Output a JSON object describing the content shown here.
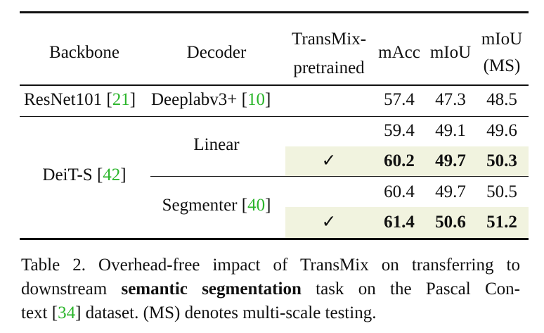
{
  "table": {
    "headers": {
      "backbone": "Backbone",
      "decoder": "Decoder",
      "pretrained_line1": "TransMix-",
      "pretrained_line2": "pretrained",
      "macc": "mAcc",
      "miou": "mIoU",
      "miou_ms_line1": "mIoU",
      "miou_ms_line2": "(MS)"
    },
    "rows": [
      {
        "backbone": "ResNet101",
        "backbone_cite": "21",
        "decoder": "Deeplabv3+",
        "decoder_cite": "10",
        "pretrained": "",
        "macc": "57.4",
        "miou": "47.3",
        "miou_ms": "48.5"
      },
      {
        "decoder": "Linear",
        "pretrained": "",
        "macc": "59.4",
        "miou": "49.1",
        "miou_ms": "49.6"
      },
      {
        "pretrained": "✓",
        "macc": "60.2",
        "miou": "49.7",
        "miou_ms": "50.3"
      },
      {
        "decoder": "Segmenter",
        "decoder_cite": "40",
        "pretrained": "",
        "macc": "60.4",
        "miou": "49.7",
        "miou_ms": "50.5"
      },
      {
        "pretrained": "✓",
        "macc": "61.4",
        "miou": "50.6",
        "miou_ms": "51.2"
      }
    ],
    "group_backbone": "DeiT-S",
    "group_backbone_cite": "42"
  },
  "caption": {
    "l1": "Table 2. Overhead-free impact of TransMix on transferring to",
    "l2_a": "downstream ",
    "l2_b": "semantic segmentation",
    "l2_c": " task on the Pascal Con-",
    "l3_a": "text [",
    "l3_cite": "34",
    "l3_b": "] dataset. (MS) denotes multi-scale testing."
  },
  "colors": {
    "highlight": "#f1f3df",
    "citation": "#2ab52a"
  }
}
